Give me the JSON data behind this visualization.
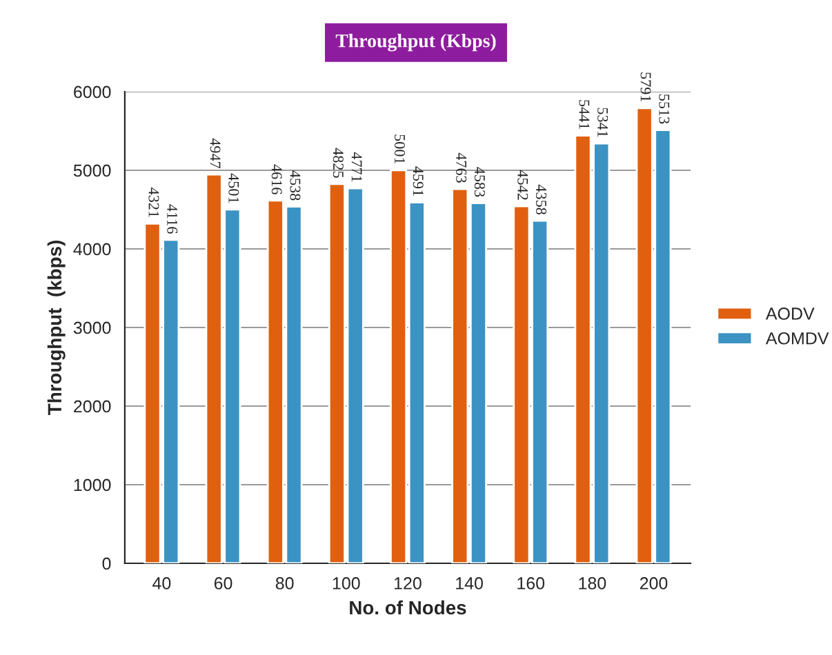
{
  "chart_data": {
    "type": "bar",
    "title": "Throughput (Kbps)",
    "xlabel": "No. of Nodes",
    "ylabel": "Throughput  (kbps)",
    "categories": [
      "40",
      "60",
      "80",
      "100",
      "120",
      "140",
      "160",
      "180",
      "200"
    ],
    "series": [
      {
        "name": "AODV",
        "color": "#e0600f",
        "values": [
          4321,
          4947,
          4616,
          4825,
          5001,
          4763,
          4542,
          5441,
          5791
        ]
      },
      {
        "name": "AOMDV",
        "color": "#3b93c4",
        "values": [
          4116,
          4501,
          4538,
          4771,
          4591,
          4583,
          4358,
          5341,
          5513
        ]
      }
    ],
    "ylim": [
      0,
      6000
    ],
    "yticks": [
      0,
      1000,
      2000,
      3000,
      4000,
      5000,
      6000
    ],
    "grid": "y",
    "legend": "right",
    "data_labels": true
  }
}
